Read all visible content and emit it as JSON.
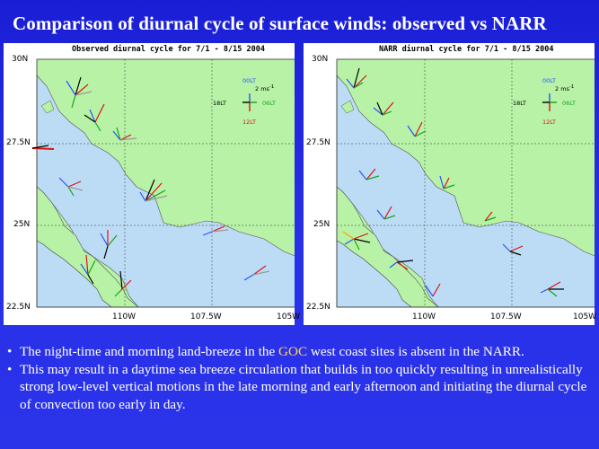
{
  "slide": {
    "title": "Comparison of diurnal cycle of surface winds: observed vs NARR"
  },
  "panels": [
    {
      "id": "observed",
      "title": "Observed diurnal cycle for 7/1 - 8/15 2004",
      "y_ticks": [
        "30N",
        "27.5N",
        "25N",
        "22.5N"
      ],
      "x_ticks": [
        "110W",
        "107.5W",
        "105W"
      ]
    },
    {
      "id": "narr",
      "title": "NARR diurnal cycle for 7/1 - 8/15 2004",
      "y_ticks": [
        "30N",
        "27.5N",
        "25N",
        "22.5N"
      ],
      "x_ticks": [
        "110W",
        "107.5W",
        "105W"
      ]
    }
  ],
  "legend": {
    "top": "00LT",
    "scale": "2 ms",
    "scale_sup": "-1",
    "left": "18LT",
    "right": "06LT",
    "bottom": "12LT"
  },
  "colors": {
    "land": "#b7f2a6",
    "sea": "#bcdcf5",
    "slide_bg": "#2229e0",
    "label_00": "#2a54ff",
    "label_06": "#19a319",
    "label_12": "#e01010",
    "label_18": "#000000"
  },
  "bullets": [
    {
      "before": "The night-time and morning land-breeze in the ",
      "highlight": "GOC",
      "after": " west coast sites is absent in the NARR."
    },
    {
      "before": "This may result in a daytime sea breeze circulation that builds in too quickly resulting in unrealistically strong low-level vertical motions in the late morning and early afternoon and initiating the diurnal cycle of convection too early in day.",
      "highlight": "",
      "after": ""
    }
  ]
}
